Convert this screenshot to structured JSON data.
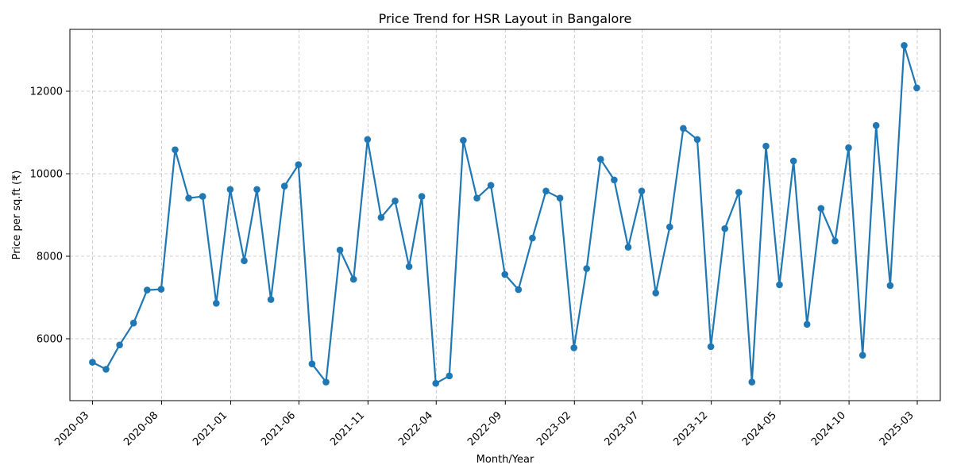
{
  "chart_data": {
    "type": "line",
    "title": "Price Trend for HSR Layout in Bangalore",
    "xlabel": "Month/Year",
    "ylabel": "Price per sq.ft (₹)",
    "grid": true,
    "xlim": [
      "2020-01-11",
      "2025-04-21"
    ],
    "ylim": [
      4500,
      13500
    ],
    "x_ticks": [
      "2020-03",
      "2020-08",
      "2021-01",
      "2021-06",
      "2021-11",
      "2022-04",
      "2022-09",
      "2023-02",
      "2023-07",
      "2023-12",
      "2024-05",
      "2024-10",
      "2025-03"
    ],
    "y_ticks": [
      6000,
      8000,
      10000,
      12000
    ],
    "color": "#1f77b4",
    "x": [
      "2020-03-01",
      "2020-03-31",
      "2020-04-30",
      "2020-05-31",
      "2020-06-30",
      "2020-07-31",
      "2020-08-31",
      "2020-09-30",
      "2020-10-31",
      "2020-11-30",
      "2020-12-31",
      "2021-01-31",
      "2021-02-28",
      "2021-03-31",
      "2021-04-30",
      "2021-05-31",
      "2021-06-30",
      "2021-07-31",
      "2021-08-31",
      "2021-09-30",
      "2021-10-31",
      "2021-11-30",
      "2021-12-31",
      "2022-01-31",
      "2022-02-28",
      "2022-03-31",
      "2022-04-30",
      "2022-05-31",
      "2022-06-30",
      "2022-07-31",
      "2022-08-31",
      "2022-09-30",
      "2022-10-31",
      "2022-11-30",
      "2022-12-31",
      "2023-01-31",
      "2023-02-28",
      "2023-03-31",
      "2023-04-30",
      "2023-05-31",
      "2023-06-30",
      "2023-07-31",
      "2023-08-31",
      "2023-09-30",
      "2023-10-31",
      "2023-11-30",
      "2023-12-31",
      "2024-01-31",
      "2024-02-29",
      "2024-03-31",
      "2024-04-30",
      "2024-05-31",
      "2024-06-30",
      "2024-07-31",
      "2024-08-31",
      "2024-09-30",
      "2024-10-31",
      "2024-11-30",
      "2024-12-31",
      "2025-01-31",
      "2025-02-28"
    ],
    "series": [
      {
        "values": [
          5430,
          5260,
          5850,
          6380,
          7180,
          7200,
          10580,
          9410,
          9450,
          6860,
          9620,
          7890,
          9620,
          6950,
          9700,
          10220,
          5390,
          4950,
          8150,
          7440,
          10830,
          8940,
          9340,
          7750,
          9450,
          4920,
          5100,
          10810,
          9410,
          9720,
          7560,
          7190,
          8440,
          9580,
          9410,
          5780,
          7700,
          10350,
          9850,
          8220,
          9580,
          7110,
          8710,
          11100,
          10830,
          5810,
          8670,
          9550,
          4950,
          10670,
          7310,
          10310,
          6350,
          9160,
          8370,
          10630,
          5600,
          11170,
          7290,
          13110,
          12080
        ]
      }
    ]
  }
}
